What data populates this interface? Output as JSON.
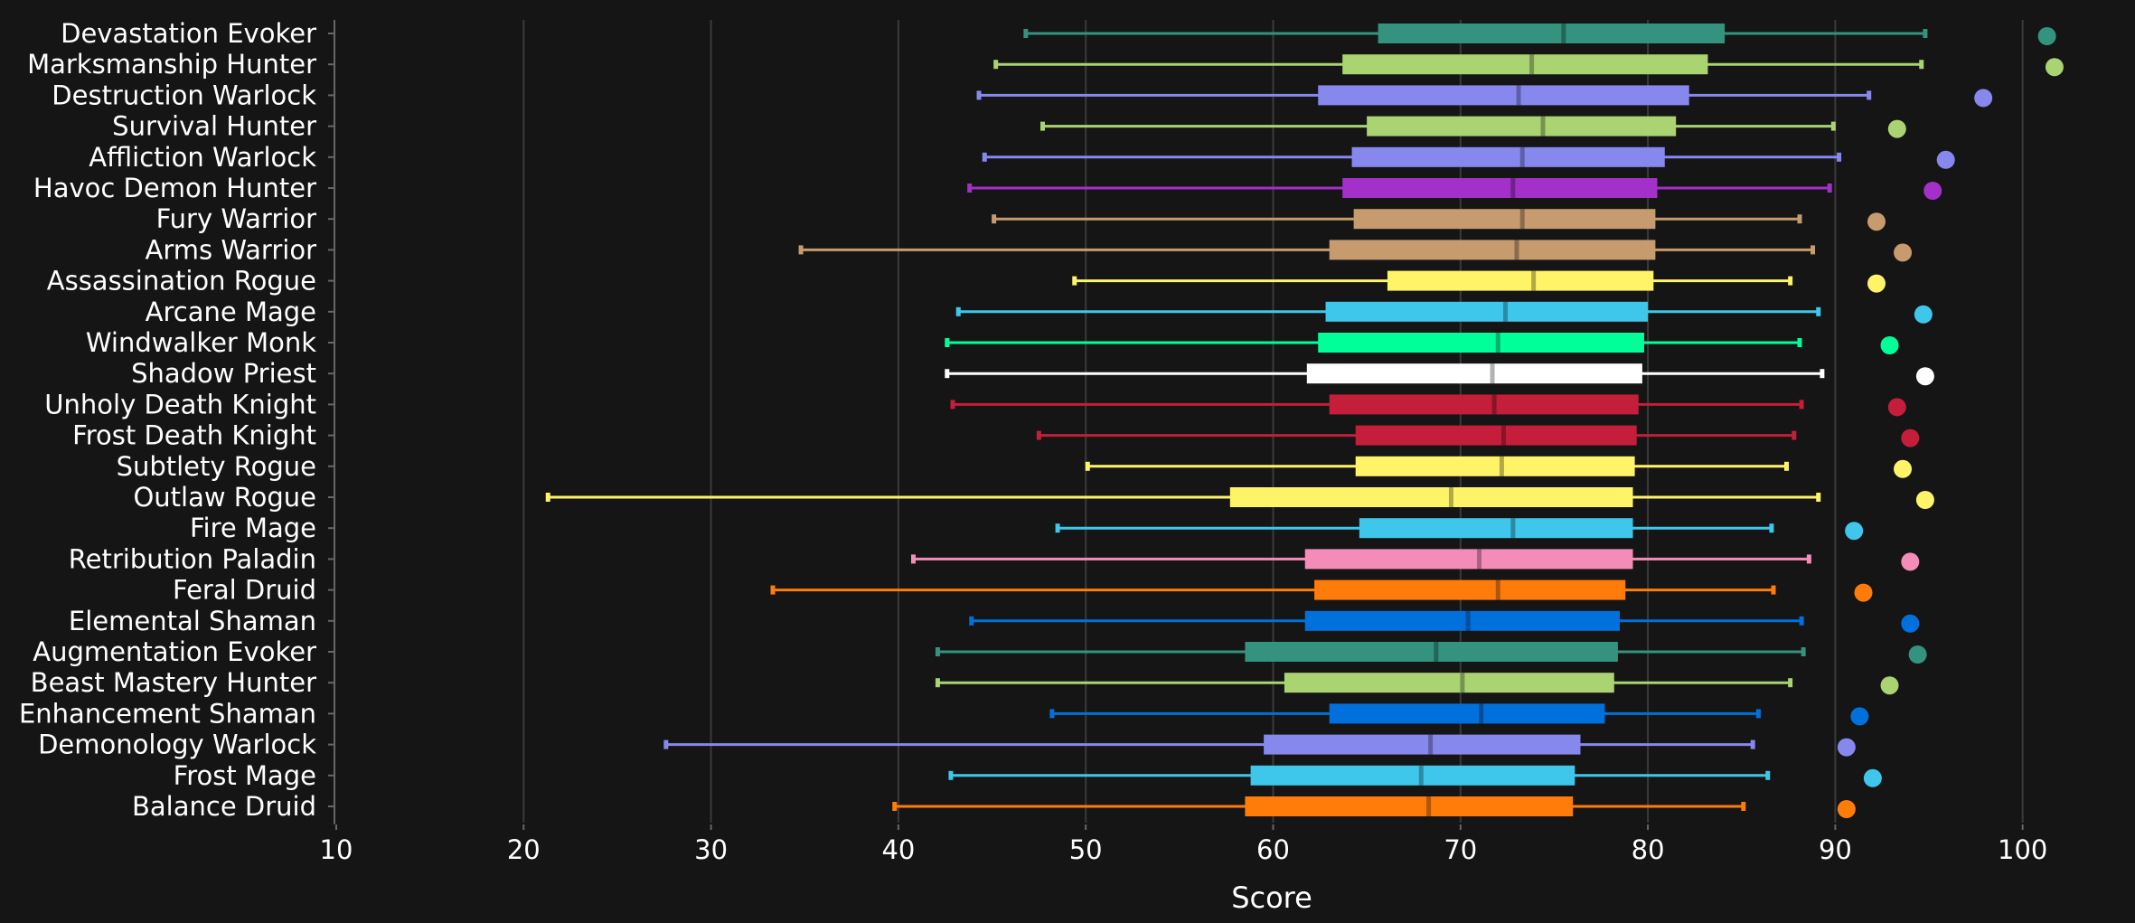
{
  "chart_data": {
    "type": "boxplot",
    "orientation": "horizontal",
    "xlabel": "Score",
    "xlim": [
      10,
      104
    ],
    "xticks": [
      10,
      20,
      30,
      40,
      50,
      60,
      70,
      80,
      90,
      100
    ],
    "grid": "vertical",
    "legend": "none",
    "categories": [
      {
        "name": "Devastation Evoker",
        "color": "#33937f",
        "min": 46.8,
        "q1": 65.6,
        "median": 75.5,
        "q3": 84.1,
        "max": 94.8,
        "top": 101.3
      },
      {
        "name": "Marksmanship Hunter",
        "color": "#aad372",
        "min": 45.2,
        "q1": 63.7,
        "median": 73.8,
        "q3": 83.2,
        "max": 94.6,
        "top": 101.7
      },
      {
        "name": "Destruction Warlock",
        "color": "#8788ee",
        "min": 44.3,
        "q1": 62.4,
        "median": 73.1,
        "q3": 82.2,
        "max": 91.8,
        "top": 97.9
      },
      {
        "name": "Survival Hunter",
        "color": "#aad372",
        "min": 47.7,
        "q1": 65.0,
        "median": 74.4,
        "q3": 81.5,
        "max": 89.9,
        "top": 93.3
      },
      {
        "name": "Affliction Warlock",
        "color": "#8788ee",
        "min": 44.6,
        "q1": 64.2,
        "median": 73.3,
        "q3": 80.9,
        "max": 90.2,
        "top": 95.9
      },
      {
        "name": "Havoc Demon Hunter",
        "color": "#a330c9",
        "min": 43.8,
        "q1": 63.7,
        "median": 72.8,
        "q3": 80.5,
        "max": 89.7,
        "top": 95.2
      },
      {
        "name": "Fury Warrior",
        "color": "#c69b6d",
        "min": 45.1,
        "q1": 64.3,
        "median": 73.3,
        "q3": 80.4,
        "max": 88.1,
        "top": 92.2
      },
      {
        "name": "Arms Warrior",
        "color": "#c69b6d",
        "min": 34.8,
        "q1": 63.0,
        "median": 73.0,
        "q3": 80.4,
        "max": 88.8,
        "top": 93.6
      },
      {
        "name": "Assassination Rogue",
        "color": "#fff468",
        "min": 49.4,
        "q1": 66.1,
        "median": 73.9,
        "q3": 80.3,
        "max": 87.6,
        "top": 92.2
      },
      {
        "name": "Arcane Mage",
        "color": "#3fc7eb",
        "min": 43.2,
        "q1": 62.8,
        "median": 72.4,
        "q3": 80.0,
        "max": 89.1,
        "top": 94.7
      },
      {
        "name": "Windwalker Monk",
        "color": "#00ff98",
        "min": 42.6,
        "q1": 62.4,
        "median": 72.0,
        "q3": 79.8,
        "max": 88.1,
        "top": 92.9
      },
      {
        "name": "Shadow Priest",
        "color": "#ffffff",
        "min": 42.6,
        "q1": 61.8,
        "median": 71.7,
        "q3": 79.7,
        "max": 89.3,
        "top": 94.8
      },
      {
        "name": "Unholy Death Knight",
        "color": "#c41e3a",
        "min": 42.9,
        "q1": 63.0,
        "median": 71.8,
        "q3": 79.5,
        "max": 88.2,
        "top": 93.3
      },
      {
        "name": "Frost Death Knight",
        "color": "#c41e3a",
        "min": 47.5,
        "q1": 64.4,
        "median": 72.3,
        "q3": 79.4,
        "max": 87.8,
        "top": 94.0
      },
      {
        "name": "Subtlety Rogue",
        "color": "#fff468",
        "min": 50.1,
        "q1": 64.4,
        "median": 72.2,
        "q3": 79.3,
        "max": 87.4,
        "top": 93.6
      },
      {
        "name": "Outlaw Rogue",
        "color": "#fff468",
        "min": 21.3,
        "q1": 57.7,
        "median": 69.5,
        "q3": 79.2,
        "max": 89.1,
        "top": 94.8
      },
      {
        "name": "Fire Mage",
        "color": "#3fc7eb",
        "min": 48.5,
        "q1": 64.6,
        "median": 72.8,
        "q3": 79.2,
        "max": 86.6,
        "top": 91.0
      },
      {
        "name": "Retribution Paladin",
        "color": "#f48cba",
        "min": 40.8,
        "q1": 61.7,
        "median": 71.0,
        "q3": 79.2,
        "max": 88.6,
        "top": 94.0
      },
      {
        "name": "Feral Druid",
        "color": "#ff7c0a",
        "min": 33.3,
        "q1": 62.2,
        "median": 72.0,
        "q3": 78.8,
        "max": 86.7,
        "top": 91.5
      },
      {
        "name": "Elemental Shaman",
        "color": "#0070dd",
        "min": 43.9,
        "q1": 61.7,
        "median": 70.4,
        "q3": 78.5,
        "max": 88.2,
        "top": 94.0
      },
      {
        "name": "Augmentation Evoker",
        "color": "#33937f",
        "min": 42.1,
        "q1": 58.5,
        "median": 68.7,
        "q3": 78.4,
        "max": 88.3,
        "top": 94.4
      },
      {
        "name": "Beast Mastery Hunter",
        "color": "#aad372",
        "min": 42.1,
        "q1": 60.6,
        "median": 70.1,
        "q3": 78.2,
        "max": 87.6,
        "top": 92.9
      },
      {
        "name": "Enhancement Shaman",
        "color": "#0070dd",
        "min": 48.2,
        "q1": 63.0,
        "median": 71.1,
        "q3": 77.7,
        "max": 85.9,
        "top": 91.3
      },
      {
        "name": "Demonology Warlock",
        "color": "#8788ee",
        "min": 27.6,
        "q1": 59.5,
        "median": 68.4,
        "q3": 76.4,
        "max": 85.6,
        "top": 90.6
      },
      {
        "name": "Frost Mage",
        "color": "#3fc7eb",
        "min": 42.8,
        "q1": 58.8,
        "median": 67.9,
        "q3": 76.1,
        "max": 86.4,
        "top": 92.0
      },
      {
        "name": "Balance Druid",
        "color": "#ff7c0a",
        "min": 39.8,
        "q1": 58.5,
        "median": 68.3,
        "q3": 76.0,
        "max": 85.1,
        "top": 90.6
      }
    ]
  }
}
